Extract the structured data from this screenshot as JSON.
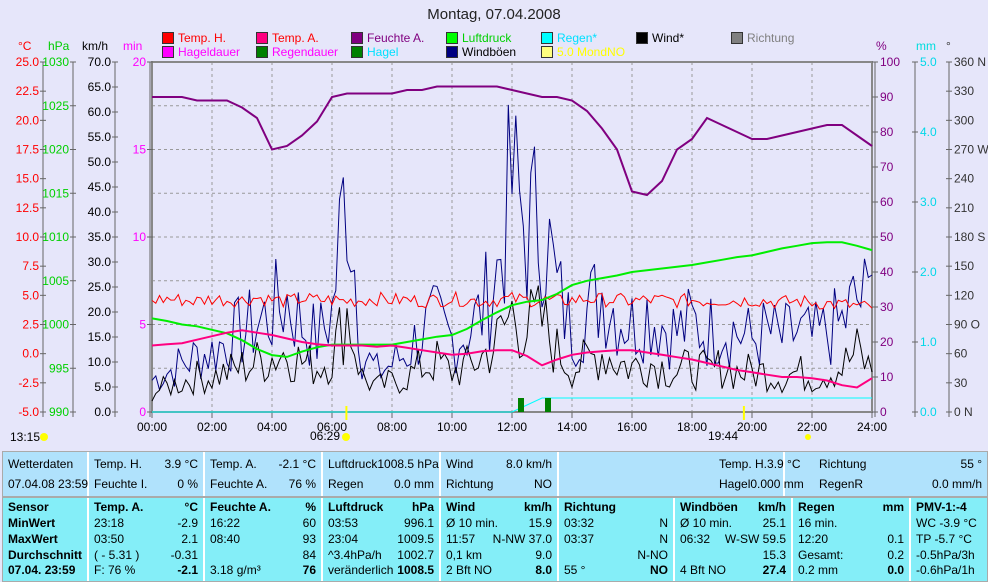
{
  "title": "Montag, 07.04.2008",
  "legend": [
    {
      "label": "Temp. H.",
      "color": "#ff0000",
      "text": "#ff0000"
    },
    {
      "label": "Temp. A.",
      "color": "#ff0080",
      "text": "#ff0000"
    },
    {
      "label": "Feuchte A.",
      "color": "#800080",
      "text": "#800080"
    },
    {
      "label": "Luftdruck",
      "color": "#00ff00",
      "text": "#00d000"
    },
    {
      "label": "Regen*",
      "color": "#00ffff",
      "text": "#00e0ff"
    },
    {
      "label": "Wind*",
      "color": "#000000",
      "text": "#000000"
    },
    {
      "label": "Richtung",
      "color": "#808080",
      "text": "#808080"
    },
    {
      "label": "Hageldauer",
      "color": "#ff00ff",
      "text": "#ff00ff"
    },
    {
      "label": "Regendauer",
      "color": "#008000",
      "text": "#ff00ff"
    },
    {
      "label": "Hagel",
      "color": "#008000",
      "text": "#00e0ff"
    },
    {
      "label": "Windböen",
      "color": "#000080",
      "text": "#000000"
    },
    {
      "label": "5.0 MondNO",
      "color": "#ffff80",
      "text": "#ffff00"
    }
  ],
  "axes": {
    "units": {
      "temp": "°C",
      "press": "hPa",
      "wind": "km/h",
      "min": "min",
      "hum": "%",
      "rain": "mm",
      "dir": "°"
    },
    "temp": [
      "25.0",
      "22.5",
      "20.0",
      "17.5",
      "15.0",
      "12.5",
      "10.0",
      "7.5",
      "5.0",
      "2.5",
      "0.0",
      "-2.5",
      "-5.0"
    ],
    "press": [
      "1030",
      "1025",
      "1020",
      "1015",
      "1010",
      "1005",
      "1000",
      "995",
      "990"
    ],
    "wind": [
      "70.0",
      "65.0",
      "60.0",
      "55.0",
      "50.0",
      "45.0",
      "40.0",
      "35.0",
      "30.0",
      "25.0",
      "20.0",
      "15.0",
      "10.0",
      "5.0",
      "0.0"
    ],
    "min": [
      "20",
      "15",
      "10",
      "5",
      "0"
    ],
    "hum": [
      "100",
      "90",
      "80",
      "70",
      "60",
      "50",
      "40",
      "30",
      "20",
      "10",
      "0"
    ],
    "rain": [
      "5.0",
      "4.0",
      "3.0",
      "2.0",
      "1.0",
      "0.0"
    ],
    "dir": [
      "360 N",
      "330",
      "300",
      "270 W",
      "240",
      "210",
      "180 S",
      "150",
      "120",
      "90 O",
      "60",
      "30",
      "0 N"
    ],
    "time": [
      "00:00",
      "02:00",
      "04:00",
      "06:00",
      "08:00",
      "10:00",
      "12:00",
      "14:00",
      "16:00",
      "18:00",
      "20:00",
      "22:00",
      "24:00"
    ]
  },
  "markers": {
    "sunrise_left": "13:15",
    "sunrise": "06:29",
    "sunset": "19:44"
  },
  "chart_data": {
    "type": "line",
    "x_hours": [
      0,
      0.5,
      1,
      1.5,
      2,
      2.5,
      3,
      3.5,
      4,
      4.5,
      5,
      5.5,
      6,
      6.5,
      7,
      7.5,
      8,
      8.5,
      9,
      9.5,
      10,
      10.5,
      11,
      11.5,
      12,
      12.5,
      13,
      13.5,
      14,
      14.5,
      15,
      15.5,
      16,
      16.5,
      17,
      17.5,
      18,
      18.5,
      19,
      19.5,
      20,
      20.5,
      21,
      21.5,
      22,
      22.5,
      23,
      23.5,
      24
    ],
    "series": [
      {
        "name": "Feuchte A.",
        "axis": "%",
        "values": [
          90,
          90,
          90,
          89,
          89,
          89,
          87,
          84,
          75,
          76,
          79,
          83,
          90,
          91,
          91,
          91,
          91,
          92,
          92,
          93,
          93,
          93,
          93,
          93,
          92,
          91,
          90,
          90,
          89,
          86,
          81,
          75,
          63,
          62,
          66,
          75,
          78,
          84,
          82,
          80,
          78,
          78,
          79,
          80,
          81,
          82,
          82,
          79,
          76
        ]
      },
      {
        "name": "Luftdruck",
        "axis": "hPa",
        "values": [
          1000.7,
          1000.4,
          1000,
          999.8,
          999.4,
          999,
          998.2,
          997.2,
          996.5,
          996.3,
          996.9,
          997.4,
          997.7,
          997.7,
          997.7,
          997.7,
          997.7,
          998,
          998.3,
          998.6,
          998.8,
          999.5,
          1000.5,
          1001.4,
          1002.2,
          1002.6,
          1002.8,
          1003.5,
          1004.5,
          1005,
          1005.3,
          1005.6,
          1006,
          1006.2,
          1006.4,
          1006.6,
          1006.8,
          1007.1,
          1007.4,
          1007.7,
          1007.9,
          1008.3,
          1008.7,
          1009,
          1009.3,
          1009.4,
          1009.4,
          1009,
          1008.5
        ]
      },
      {
        "name": "Temp. A.",
        "axis": "°C",
        "values": [
          0.7,
          0.8,
          0.9,
          1.2,
          1.5,
          1.8,
          2,
          1.8,
          1.6,
          1.3,
          1,
          0.8,
          0.7,
          0.7,
          0.7,
          0.6,
          0.7,
          0.5,
          0.3,
          0.1,
          -0.1,
          0,
          0.2,
          0.3,
          0.3,
          -0.2,
          -1,
          -0.5,
          -0.1,
          0.1,
          0.2,
          0.3,
          0.3,
          0.1,
          -0.1,
          -0.3,
          -0.5,
          -0.8,
          -1.1,
          -1.4,
          -1.6,
          -1.8,
          -2,
          -2,
          -2.1,
          -2.3,
          -2.7,
          -2.9,
          -2.1
        ]
      },
      {
        "name": "Temp. H.",
        "axis": "°C",
        "values": [
          4.6,
          4.7,
          4.6,
          4.5,
          4.7,
          4.6,
          4.6,
          4.8,
          4.6,
          4.5,
          4.7,
          4.6,
          4.6,
          4.5,
          4.6,
          4.7,
          4.6,
          4.6,
          4.5,
          4.6,
          4.7,
          4.6,
          4.5,
          4.6,
          4.7,
          4.6,
          4.6,
          4.5,
          4.6,
          4.7,
          4.6,
          4.6,
          4.5,
          4.6,
          4.6,
          4.5,
          4.6,
          4.5,
          4.6,
          4.5,
          4.6,
          4.5,
          4.4,
          4.5,
          4.4,
          4.3,
          4.2,
          4.1,
          3.9
        ]
      },
      {
        "name": "Windböen",
        "axis": "km/h",
        "values": [
          8,
          10,
          12,
          14,
          15,
          18,
          20,
          22,
          25,
          28,
          22,
          18,
          25,
          59.5,
          15,
          10,
          12,
          15,
          20,
          22,
          18,
          20,
          25,
          35,
          57,
          45,
          50,
          30,
          20,
          25,
          30,
          25,
          22,
          25,
          22,
          20,
          22,
          20,
          22,
          20,
          18,
          20,
          18,
          20,
          18,
          20,
          22,
          28,
          27.4
        ]
      },
      {
        "name": "Wind*",
        "axis": "km/h",
        "values": [
          4,
          5,
          6,
          7,
          7,
          8,
          9,
          10,
          11,
          12,
          10,
          9,
          11,
          20,
          7,
          5,
          6,
          7,
          9,
          10,
          8,
          9,
          11,
          14,
          20,
          17,
          18,
          12,
          9,
          10,
          12,
          10,
          9,
          10,
          9,
          8,
          9,
          8,
          9,
          8,
          8,
          8,
          7,
          8,
          7,
          8,
          9,
          12,
          8
        ]
      },
      {
        "name": "Regen*",
        "axis": "mm",
        "values": [
          0,
          0,
          0,
          0,
          0,
          0,
          0,
          0,
          0,
          0,
          0,
          0,
          0,
          0,
          0,
          0,
          0,
          0,
          0,
          0,
          0,
          0,
          0,
          0,
          0,
          0.1,
          0.2,
          0.2,
          0.2,
          0.2,
          0.2,
          0.2,
          0.2,
          0.2,
          0.2,
          0.2,
          0.2,
          0.2,
          0.2,
          0.2,
          0.2,
          0.2,
          0.2,
          0.2,
          0.2,
          0.2,
          0.2,
          0.2,
          0.2
        ]
      }
    ],
    "ranges": {
      "°C": [
        -5,
        25
      ],
      "hPa": [
        990,
        1030
      ],
      "km/h": [
        0,
        70
      ],
      "min": [
        0,
        20
      ],
      "%": [
        0,
        100
      ],
      "mm": [
        0,
        5
      ],
      "°": [
        0,
        360
      ]
    },
    "grid": true
  },
  "current": {
    "wetterdaten": "Wetterdaten",
    "datetime": "07.04.08 23:59",
    "temp_h_label": "Temp. H.",
    "temp_h": "3.9 °C",
    "feuchte_i_label": "Feuchte I.",
    "feuchte_i": "0 %",
    "temp_a_label": "Temp. A.",
    "temp_a": "-2.1 °C",
    "feuchte_a_label": "Feuchte A.",
    "feuchte_a": "76 %",
    "luftdruck_label": "Luftdruck",
    "luftdruck": "1008.5 hPa",
    "regen_label": "Regen",
    "regen": "0.0 mm",
    "wind_label": "Wind",
    "wind": "8.0 km/h",
    "richtung_label": "Richtung",
    "richtung": "NO",
    "temp_h2_label": "Temp. H.",
    "temp_h2": "3.9 °C",
    "hagel_label": "Hagel",
    "hagel": "0.000 mm",
    "richtung2_label": "Richtung",
    "richtung2": "55 °",
    "regenr_label": "RegenR",
    "regenr": "0.0 mm/h"
  },
  "stats": [
    {
      "h": [
        "Sensor",
        ""
      ],
      "rows": [
        [
          "MinWert",
          ""
        ],
        [
          "MaxWert",
          ""
        ],
        [
          "Durchschnitt",
          ""
        ],
        [
          "07.04. 23:59",
          ""
        ]
      ],
      "bold_col0": true
    },
    {
      "h": [
        "Temp. A.",
        "°C"
      ],
      "rows": [
        [
          "23:18",
          "-2.9"
        ],
        [
          "03:50",
          "2.1"
        ],
        [
          "( - 5.31 )",
          "-0.31"
        ],
        [
          "F: 76 %",
          "-2.1"
        ]
      ]
    },
    {
      "h": [
        "Feuchte A.",
        "%"
      ],
      "rows": [
        [
          "16:22",
          "60"
        ],
        [
          "08:40",
          "93"
        ],
        [
          "",
          "84"
        ],
        [
          "3.18 g/m³",
          "76"
        ]
      ]
    },
    {
      "h": [
        "Luftdruck",
        "hPa"
      ],
      "rows": [
        [
          "03:53",
          "996.1"
        ],
        [
          "23:04",
          "1009.5"
        ],
        [
          "^3.4hPa/h",
          "1002.7"
        ],
        [
          "veränderlich",
          "1008.5"
        ]
      ]
    },
    {
      "h": [
        "Wind",
        "km/h"
      ],
      "rows": [
        [
          "Ø 10 min.",
          "15.9"
        ],
        [
          "11:57",
          "N-NW 37.0"
        ],
        [
          "0,1 km",
          "9.0"
        ],
        [
          "2 Bft NO",
          "8.0"
        ]
      ]
    },
    {
      "h": [
        "Richtung",
        ""
      ],
      "rows": [
        [
          "03:32",
          "N"
        ],
        [
          "03:37",
          "N"
        ],
        [
          "",
          "N-NO"
        ],
        [
          "55 °",
          "NO"
        ]
      ]
    },
    {
      "h": [
        "Windböen",
        "km/h"
      ],
      "rows": [
        [
          "Ø 10 min.",
          "25.1"
        ],
        [
          "06:32",
          "W-SW 59.5"
        ],
        [
          "",
          "15.3"
        ],
        [
          "4 Bft NO",
          "27.4"
        ]
      ]
    },
    {
      "h": [
        "Regen",
        "mm"
      ],
      "rows": [
        [
          "16 min.",
          ""
        ],
        [
          "12:20",
          "0.1"
        ],
        [
          "Gesamt:",
          "0.2"
        ],
        [
          "0.2 mm",
          "0.0"
        ]
      ]
    },
    {
      "h": [
        "PMV-1:-4",
        ""
      ],
      "rows": [
        [
          "WC -3.9 °C",
          ""
        ],
        [
          "TP -5.7 °C",
          ""
        ],
        [
          "-0.5hPa/3h",
          ""
        ],
        [
          "-0.6hPa/1h",
          ""
        ]
      ]
    }
  ]
}
